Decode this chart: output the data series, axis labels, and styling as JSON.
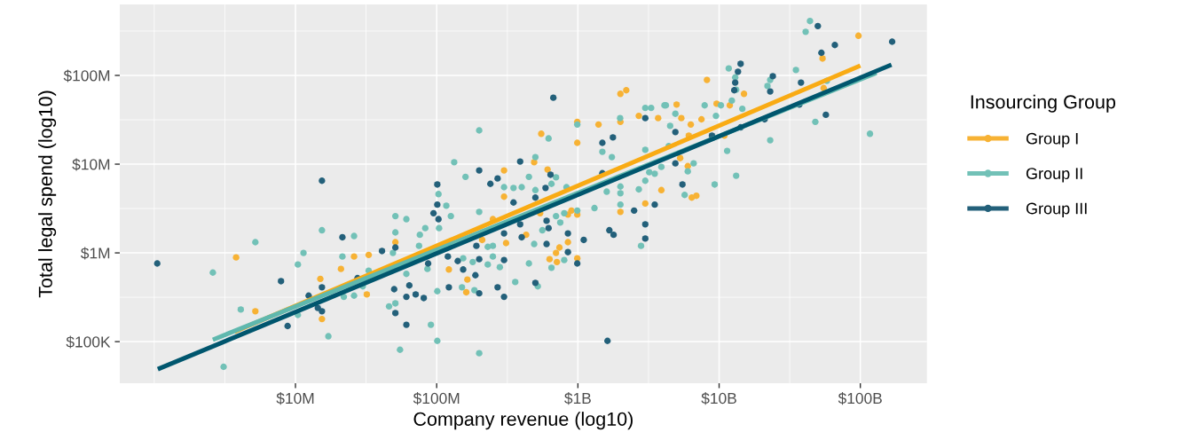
{
  "chart_data": {
    "type": "scatter",
    "xlabel": "Company revenue (log10)",
    "ylabel": "Total legal spend (log10)",
    "legend_title": "Insourcing Group",
    "legend": "right",
    "grid": true,
    "log": "xy",
    "marker": "circle",
    "line_style": "solid",
    "xlim": [
      570000.0,
      296000000000.0
    ],
    "ylim": [
      34000.0,
      630000000.0
    ],
    "xticks": [
      {
        "value": 10000000.0,
        "label": "$10M"
      },
      {
        "value": 100000000.0,
        "label": "$100M"
      },
      {
        "value": 1000000000.0,
        "label": "$1B"
      },
      {
        "value": 10000000000.0,
        "label": "$10B"
      },
      {
        "value": 100000000000.0,
        "label": "$100B"
      }
    ],
    "yticks": [
      {
        "value": 100000.0,
        "label": "$100K"
      },
      {
        "value": 1000000.0,
        "label": "$1M"
      },
      {
        "value": 10000000.0,
        "label": "$10M"
      },
      {
        "value": 100000000.0,
        "label": "$100M"
      }
    ],
    "series": [
      {
        "name": "Group I",
        "color": "#f7b234",
        "x": [
          3800000.0,
          5200000.0,
          15000000.0,
          15400000.0,
          21000000.0,
          26000000.0,
          33000000.0,
          32000000.0,
          51000000.0,
          122000000.0,
          165000000.0,
          162000000.0,
          210000000.0,
          300000000.0,
          300000000.0,
          310000000.0,
          250000000.0,
          430000000.0,
          490000000.0,
          550000000.0,
          610000000.0,
          540000000.0,
          850000000.0,
          850000000.0,
          900000000.0,
          990000000.0,
          630000000.0,
          710000000.0,
          700000000.0,
          740000000.0,
          990000000.0,
          990000000.0,
          990000000.0,
          1400000000.0,
          2000000000.0,
          2200000000.0,
          2000000000.0,
          2000000000.0,
          2700000000.0,
          3700000000.0,
          3900000000.0,
          3000000000.0,
          5000000000.0,
          5400000000.0,
          6300000000.0,
          6100000000.0,
          5300000000.0,
          6000000000.0,
          6400000000.0,
          6900000000.0,
          7500000000.0,
          8200000000.0,
          9600000000.0,
          11900000000.0,
          10900000000.0,
          15000000000.0,
          54000000000.0,
          55000000000.0,
          97000000000.0
        ],
        "values": [
          890000.0,
          220000.0,
          510000.0,
          180000.0,
          660000.0,
          910000.0,
          950000.0,
          340000.0,
          1320000.0,
          650000.0,
          500000.0,
          360000.0,
          1400000.0,
          8500000.0,
          4300000.0,
          1290000.0,
          2400000.0,
          1600000.0,
          10500000.0,
          22000000.0,
          8700000.0,
          2800000.0,
          1320000.0,
          2700000.0,
          3000000.0,
          2700000.0,
          850000.0,
          790000.0,
          1000000.0,
          1150000.0,
          870000.0,
          30000000.0,
          17400000.0,
          28000000.0,
          62000000.0,
          68000000.0,
          30000000.0,
          2900000.0,
          35000000.0,
          33000000.0,
          5100000.0,
          3600000.0,
          47000000.0,
          33000000.0,
          28000000.0,
          21000000.0,
          11700000.0,
          9500000.0,
          4200000.0,
          4400000.0,
          32000000.0,
          89000000.0,
          48000000.0,
          46000000.0,
          21000000.0,
          62000000.0,
          155000000.0,
          72000000.0,
          280000000.0
        ]
      },
      {
        "name": "Group II",
        "color": "#72c1b7",
        "x": [
          2600000.0,
          3100000.0,
          4100000.0,
          5200000.0,
          10400000.0,
          10400000.0,
          11400000.0,
          15400000.0,
          17100000.0,
          21500000.0,
          22000000.0,
          26000000.0,
          26000000.0,
          30000000.0,
          33000000.0,
          49000000.0,
          51000000.0,
          51000000.0,
          61000000.0,
          51000000.0,
          46000000.0,
          55000000.0,
          61000000.0,
          76000000.0,
          75000000.0,
          83000000.0,
          86000000.0,
          91000000.0,
          103000000.0,
          104000000.0,
          101000000.0,
          101000000.0,
          117000000.0,
          126000000.0,
          133000000.0,
          160000000.0,
          154000000.0,
          151000000.0,
          180000000.0,
          185000000.0,
          200000000.0,
          200000000.0,
          200000000.0,
          230000000.0,
          250000000.0,
          250000000.0,
          280000000.0,
          300000000.0,
          350000000.0,
          360000000.0,
          400000000.0,
          450000000.0,
          500000000.0,
          620000000.0,
          650000000.0,
          700000000.0,
          500000000.0,
          990000000.0,
          1490000000.0,
          1740000000.0,
          1990000000.0,
          3000000000.0,
          3300000000.0,
          4100000000.0,
          3000000000.0,
          3000000000.0,
          2000000000.0,
          2000000000.0,
          2000000000.0,
          1600000000.0,
          1310000000.0,
          830000000.0,
          990000000.0,
          700000000.0,
          800000000.0,
          750000000.0,
          560000000.0,
          490000000.0,
          450000000.0,
          650000000.0,
          800000000.0,
          520000000.0,
          230000000.0,
          2800000000.0,
          2700000000.0,
          3200000000.0,
          3900000000.0,
          4200000000.0,
          4500000000.0,
          4900000000.0,
          4400000000.0,
          3500000000.0,
          6000000000.0,
          6600000000.0,
          5700000000.0,
          9300000000.0,
          13200000000.0,
          11400000000.0,
          7900000000.0,
          9500000000.0,
          10300000000.0,
          12300000000.0,
          11700000000.0,
          13000000000.0,
          13200000000.0,
          14600000000.0,
          22000000000.0,
          23000000000.0,
          23000000000.0,
          35000000000.0,
          48000000000.0,
          41000000000.0,
          44000000000.0,
          58000000000.0,
          117000000000.0
        ],
        "values": [
          600000.0,
          52000.0,
          230000.0,
          1320000.0,
          740000.0,
          200000.0,
          1000000.0,
          1800000.0,
          115000.0,
          910000.0,
          320000.0,
          1550000.0,
          330000.0,
          420000.0,
          630000.0,
          1000000.0,
          2600000.0,
          1700000.0,
          2400000.0,
          270000.0,
          250000.0,
          81000.0,
          580000.0,
          1600000.0,
          1200000.0,
          1900000.0,
          660000.0,
          155000.0,
          4600000.0,
          1900000.0,
          370000.0,
          102000.0,
          3400000.0,
          2600000.0,
          10500000.0,
          7200000.0,
          870000.0,
          410000.0,
          790000.0,
          380000.0,
          2900000.0,
          24000000.0,
          74000.0,
          740000.0,
          910000.0,
          1200000.0,
          690000.0,
          5500000.0,
          5400000.0,
          470000.0,
          5500000.0,
          7200000.0,
          12000000.0,
          19500000.0,
          6000000.0,
          7100000.0,
          5100000.0,
          28000000.0,
          13800000.0,
          12000000.0,
          33000000.0,
          43000000.0,
          43000000.0,
          46000000.0,
          14500000.0,
          6500000.0,
          5600000.0,
          4700000.0,
          3500000.0,
          4900000.0,
          3200000.0,
          5500000.0,
          3000000.0,
          2600000.0,
          2800000.0,
          2200000.0,
          1800000.0,
          1260000.0,
          760000.0,
          680000.0,
          830000.0,
          420000.0,
          1170000.0,
          1200000.0,
          5200000.0,
          8100000.0,
          9300000.0,
          46000000.0,
          27000000.0,
          37000000.0,
          16000000.0,
          7800000.0,
          8300000.0,
          10200000.0,
          4500000.0,
          5900000.0,
          7400000.0,
          14100000.0,
          46000000.0,
          35000000.0,
          46000000.0,
          52000000.0,
          120000000.0,
          95000000.0,
          69000000.0,
          42000000.0,
          76000000.0,
          89000000.0,
          18600000.0,
          115000000.0,
          30000000.0,
          310000000.0,
          410000000.0,
          87000000.0,
          22000000.0
        ]
      },
      {
        "name": "Group III",
        "color": "#23607a",
        "x": [
          1050000.0,
          7900000.0,
          8800000.0,
          12400000.0,
          15400000.0,
          15400000.0,
          14400000.0,
          15400000.0,
          21500000.0,
          27500000.0,
          41000000.0,
          51000000.0,
          50000000.0,
          51000000.0,
          64000000.0,
          61000000.0,
          61000000.0,
          71000000.0,
          81000000.0,
          87000000.0,
          101000000.0,
          101000000.0,
          103000000.0,
          95000000.0,
          120000000.0,
          141000000.0,
          154000000.0,
          188000000.0,
          200000000.0,
          200000000.0,
          200000000.0,
          240000000.0,
          270000000.0,
          122000000.0,
          270000000.0,
          300000000.0,
          300000000.0,
          350000000.0,
          390000000.0,
          670000000.0,
          500000000.0,
          590000000.0,
          640000000.0,
          390000000.0,
          400000000.0,
          600000000.0,
          620000000.0,
          600000000.0,
          300000000.0,
          191000000.0,
          500000000.0,
          850000000.0,
          850000000.0,
          990000000.0,
          1100000000.0,
          1490000000.0,
          1770000000.0,
          1490000000.0,
          1670000000.0,
          1790000000.0,
          2500000000.0,
          3000000000.0,
          3000000000.0,
          3000000000.0,
          3500000000.0,
          1620000000.0,
          4900000000.0,
          4900000000.0,
          5500000000.0,
          14200000000.0,
          13600000000.0,
          13000000000.0,
          12800000000.0,
          14200000000.0,
          8900000000.0,
          24000000000.0,
          23000000000.0,
          21000000000.0,
          38000000000.0,
          37000000000.0,
          57000000000.0,
          50000000000.0,
          53000000000.0,
          66000000000.0,
          168000000000.0
        ],
        "values": [
          760000.0,
          480000.0,
          150000.0,
          330000.0,
          6500000.0,
          410000.0,
          240000.0,
          220000.0,
          1500000.0,
          520000.0,
          1050000.0,
          1150000.0,
          390000.0,
          210000.0,
          430000.0,
          320000.0,
          155000.0,
          340000.0,
          310000.0,
          760000.0,
          5900000.0,
          3500000.0,
          2400000.0,
          2800000.0,
          910000.0,
          810000.0,
          650000.0,
          560000.0,
          850000.0,
          8500000.0,
          350000.0,
          6000000.0,
          6900000.0,
          410000.0,
          410000.0,
          320000.0,
          830000.0,
          3700000.0,
          10700000.0,
          56000000.0,
          4200000.0,
          5400000.0,
          7600000.0,
          2100000.0,
          1500000.0,
          2300000.0,
          1900000.0,
          1260000.0,
          1660000.0,
          1200000.0,
          460000.0,
          1660000.0,
          1020000.0,
          760000.0,
          1400000.0,
          17400000.0,
          20000000.0,
          7900000.0,
          1800000.0,
          1600000.0,
          3000000.0,
          33000000.0,
          2100000.0,
          1450000.0,
          3500000.0,
          102000.0,
          23000000.0,
          10200000.0,
          5900000.0,
          135000000.0,
          110000000.0,
          83000000.0,
          68000000.0,
          26000000.0,
          21000000.0,
          98000000.0,
          66000000.0,
          32000000.0,
          83000000.0,
          47000000.0,
          36000000.0,
          360000000.0,
          180000000.0,
          220000000.0,
          240000000.0
        ]
      },
      {
        "type": "line",
        "marker": "none",
        "color": "#f9ab14",
        "x": [
          3700000.0,
          100000000000.0
        ],
        "values": [
          129000.0,
          129000000.0
        ]
      },
      {
        "type": "line",
        "marker": "none",
        "color": "#5fb8ae",
        "x": [
          2600000.0,
          130000000000.0
        ],
        "values": [
          105000.0,
          107000000.0
        ]
      },
      {
        "type": "line",
        "marker": "none",
        "color": "#00566e",
        "x": [
          1060000.0,
          166000000000.0
        ],
        "values": [
          49000.0,
          132000000.0
        ]
      }
    ]
  }
}
